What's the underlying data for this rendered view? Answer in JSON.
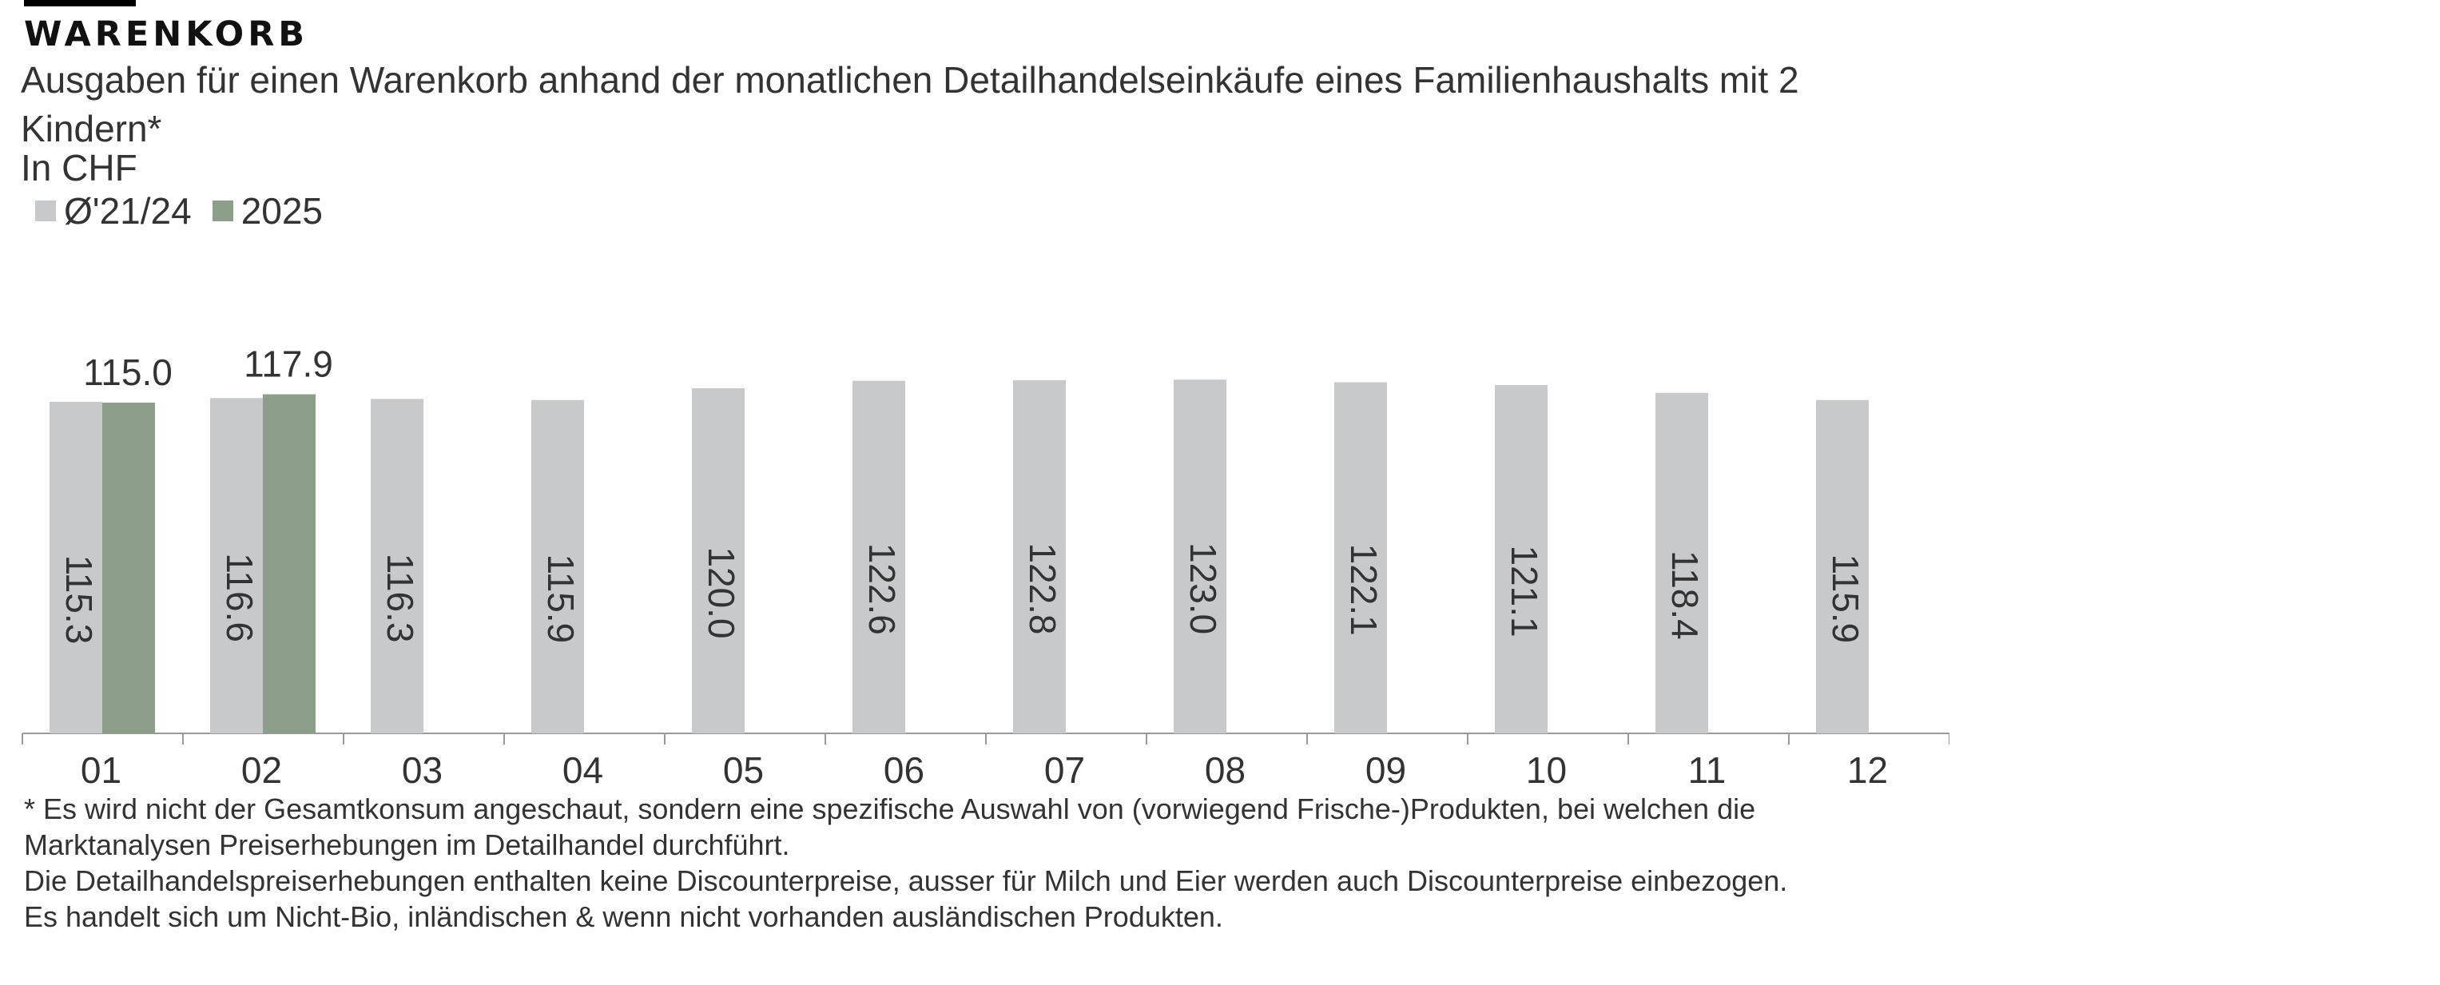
{
  "header": {
    "kicker": "WARENKORB",
    "subtitle": "Ausgaben für einen Warenkorb anhand der monatlichen Detailhandelseinkäufe eines Familienhaushalts mit 2 Kindern*",
    "unit": "In CHF"
  },
  "legend": [
    {
      "label": "Ø'21/24",
      "color": "#c8c9cb"
    },
    {
      "label": "2025",
      "color": "#8d9e8a"
    }
  ],
  "chart_data": {
    "type": "bar",
    "categories": [
      "01",
      "02",
      "03",
      "04",
      "05",
      "06",
      "07",
      "08",
      "09",
      "10",
      "11",
      "12"
    ],
    "series": [
      {
        "name": "Ø'21/24",
        "color": "#c8c9cb",
        "values": [
          115.3,
          116.6,
          116.3,
          115.9,
          120.0,
          122.6,
          122.8,
          123.0,
          122.1,
          121.1,
          118.4,
          115.9
        ],
        "labels": [
          "115.3",
          "116.6",
          "116.3",
          "115.9",
          "120.0",
          "122.6",
          "122.8",
          "123.0",
          "122.1",
          "121.1",
          "118.4",
          "115.9"
        ]
      },
      {
        "name": "2025",
        "color": "#8d9e8a",
        "values": [
          115.0,
          117.9,
          null,
          null,
          null,
          null,
          null,
          null,
          null,
          null,
          null,
          null
        ],
        "labels": [
          "115.0",
          "117.9",
          "",
          "",
          "",
          "",
          "",
          "",
          "",
          "",
          "",
          ""
        ]
      }
    ],
    "ylim": [
      0,
      130
    ],
    "grid": false,
    "legend_position": "top-left"
  },
  "footnote": [
    "* Es wird nicht der Gesamtkonsum angeschaut, sondern eine spezifische Auswahl von (vorwiegend Frische-)Produkten, bei welchen die",
    "Marktanalysen Preiserhebungen im Detailhandel durchführt.",
    "Die Detailhandelspreiserhebungen enthalten keine Discounterpreise, ausser für Milch und Eier werden auch Discounterpreise einbezogen.",
    "Es handelt sich um Nicht-Bio, inländischen & wenn nicht vorhanden ausländischen Produkten."
  ]
}
